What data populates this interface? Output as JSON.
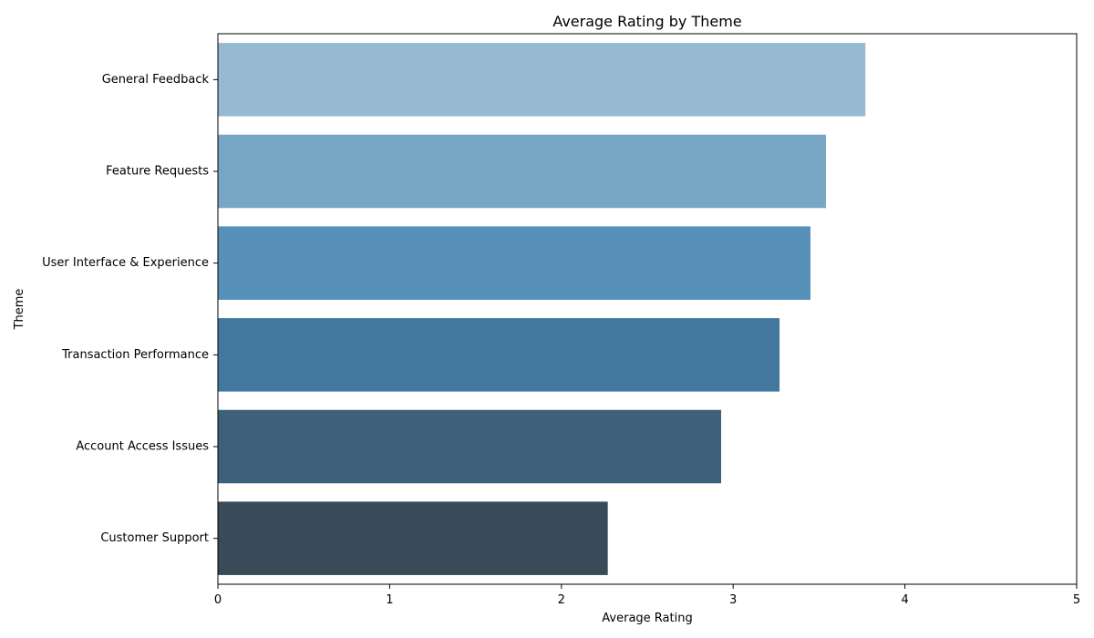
{
  "chart_data": {
    "type": "bar",
    "orientation": "horizontal",
    "title": "Average Rating by Theme",
    "xlabel": "Average Rating",
    "ylabel": "Theme",
    "xlim": [
      0,
      5
    ],
    "xticks": [
      "0",
      "1",
      "2",
      "3",
      "4",
      "5"
    ],
    "grid": false,
    "categories": [
      "General Feedback",
      "Feature Requests",
      "User Interface & Experience",
      "Transaction Performance",
      "Account Access Issues",
      "Customer Support"
    ],
    "values": [
      3.77,
      3.54,
      3.45,
      3.27,
      2.93,
      2.27
    ],
    "colors": [
      "#97bad3",
      "#77a6c5",
      "#5790b9",
      "#43789e",
      "#3e617b",
      "#394a58"
    ]
  }
}
